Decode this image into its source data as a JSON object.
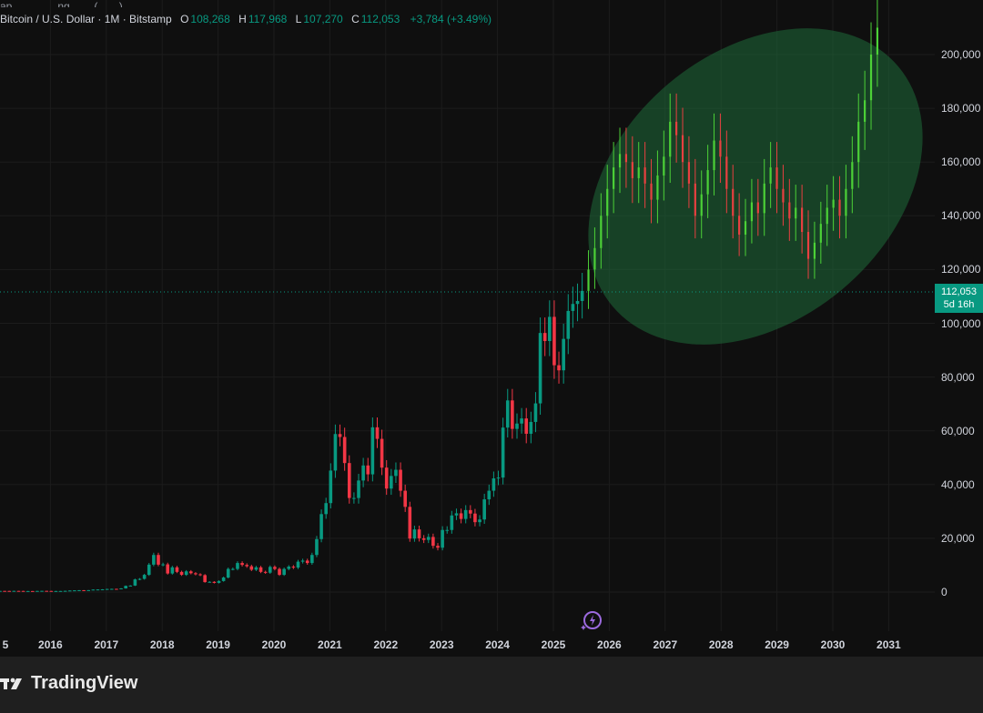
{
  "header": {
    "top_cut": "ap... ... ... ...ng... ...  (... ...)",
    "symbol": "Bitcoin / U.S. Dollar · 1M · Bitstamp",
    "o_key": "O",
    "o_val": "108,268",
    "h_key": "H",
    "h_val": "117,968",
    "l_key": "L",
    "l_val": "107,270",
    "c_key": "C",
    "c_val": "112,053",
    "change": "+3,784 (+3.49%)"
  },
  "price_tag": {
    "price": "112,053",
    "countdown": "5d 16h"
  },
  "y_axis": [
    "200,000",
    "180,000",
    "160,000",
    "140,000",
    "120,000",
    "100,000",
    "80,000",
    "60,000",
    "40,000",
    "20,000",
    "0"
  ],
  "x_axis": [
    "5",
    "2016",
    "2017",
    "2018",
    "2019",
    "2020",
    "2021",
    "2022",
    "2023",
    "2024",
    "2025",
    "2026",
    "2027",
    "2028",
    "2029",
    "2030",
    "2031"
  ],
  "brand": {
    "name": "TradingView"
  },
  "colors": {
    "up": "#089981",
    "down": "#f23645",
    "proj_up": "#4cd137",
    "proj_down": "#e84040",
    "ellipse": "#1f6b3a"
  },
  "chart_data": {
    "type": "candlestick",
    "title": "Bitcoin / U.S. Dollar · 1M · Bitstamp",
    "current_price": 112053,
    "ylim": [
      -15000,
      215000
    ],
    "historical_closes": [
      430,
      420,
      360,
      440,
      420,
      360,
      380,
      370,
      420,
      450,
      410,
      330,
      390,
      400,
      460,
      570,
      630,
      690,
      650,
      710,
      920,
      960,
      1000,
      1140,
      1180,
      1080,
      1350,
      2300,
      2400,
      4700,
      4900,
      6400,
      10200,
      13800,
      10200,
      10300,
      6900,
      9200,
      7500,
      6400,
      7700,
      7000,
      6600,
      6300,
      3700,
      3800,
      3400,
      4100,
      5400,
      8600,
      8600,
      10800,
      10100,
      9600,
      8300,
      9200,
      7500,
      7200,
      9350,
      8600,
      6400,
      8600,
      9450,
      9100,
      11300,
      11700,
      10800,
      13800,
      19700,
      29000,
      33100,
      45200,
      58800,
      57700,
      48000,
      35000,
      35000,
      41500,
      47100,
      43800,
      61300,
      57000,
      46300,
      38500,
      43200,
      45500,
      37700,
      31700,
      19900,
      23300,
      20000,
      19400,
      20500,
      17200,
      16500,
      23100,
      23100,
      28500,
      29300,
      27200,
      30500,
      29200,
      26000,
      27000,
      34500,
      37700,
      42300,
      42600,
      61200,
      71300,
      60700,
      62700,
      64600,
      58900,
      63300,
      70200,
      96400,
      93400,
      102400,
      84400,
      82500,
      94200,
      104600,
      107200,
      108300,
      112050
    ],
    "projected_closes": [
      120000,
      128000,
      140000,
      150000,
      158000,
      163000,
      160000,
      154000,
      158000,
      152000,
      146000,
      155000,
      162000,
      175000,
      170000,
      160000,
      152000,
      140000,
      148000,
      157000,
      168000,
      162000,
      150000,
      140000,
      133000,
      138000,
      145000,
      141000,
      152000,
      158000,
      150000,
      145000,
      139000,
      143000,
      134000,
      124000,
      130000,
      137000,
      143000,
      146000,
      140000,
      150000,
      160000,
      175000,
      183000,
      200000,
      210000
    ],
    "x_range": [
      "2015",
      "2031"
    ]
  }
}
